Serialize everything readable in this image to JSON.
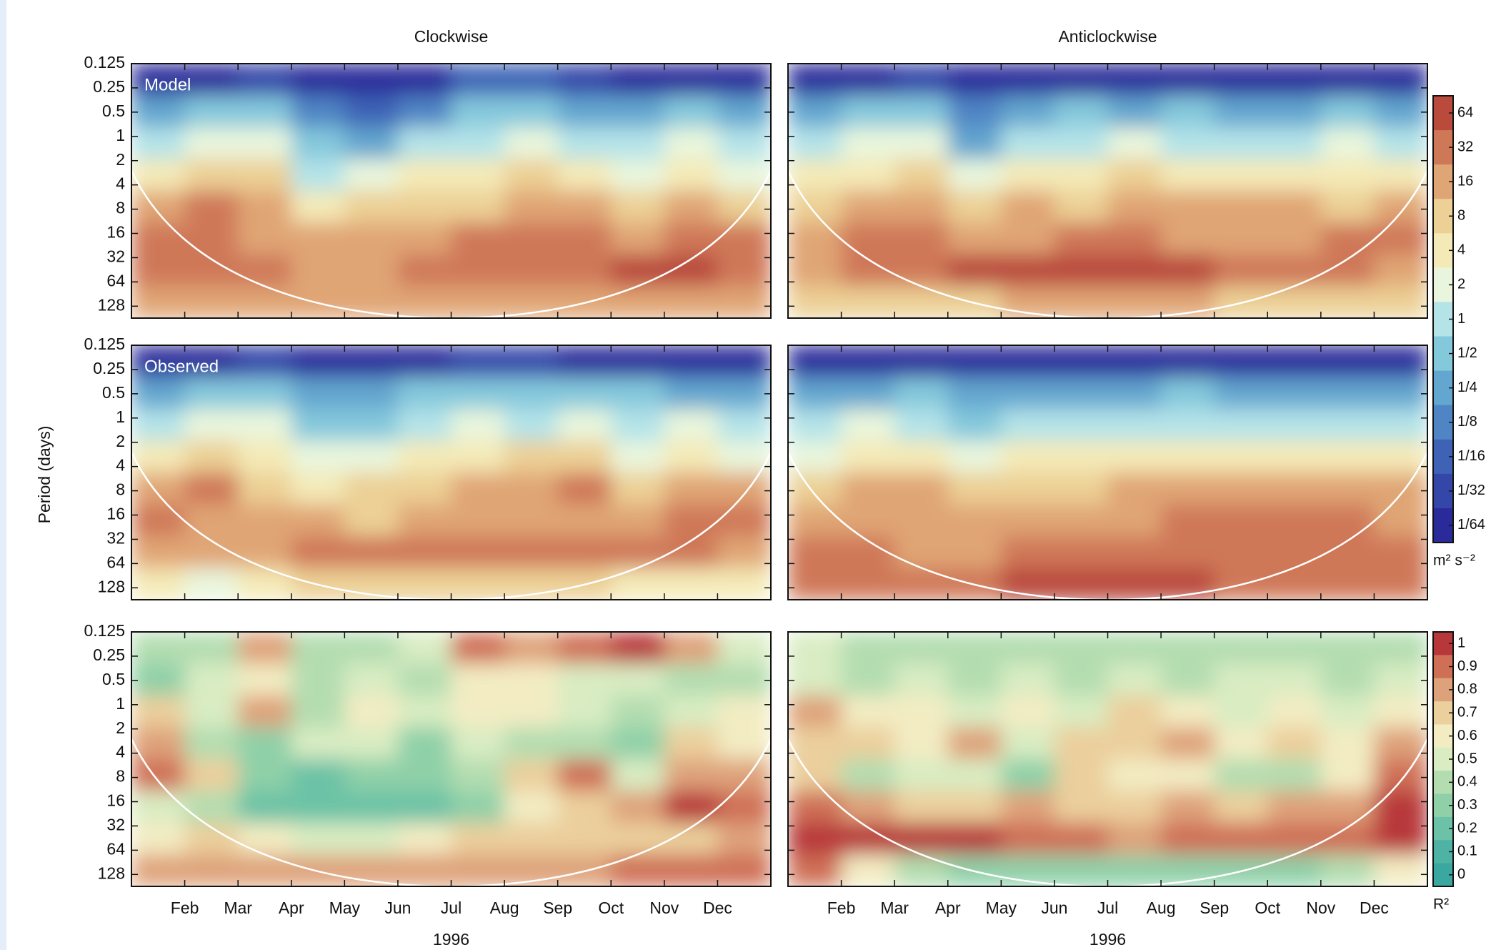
{
  "chart_data": {
    "type": "heatmap",
    "ylabel": "Period (days)",
    "xlabel": "1996",
    "xticks": [
      "Feb",
      "Mar",
      "Apr",
      "May",
      "Jun",
      "Jul",
      "Aug",
      "Sep",
      "Oct",
      "Nov",
      "Dec"
    ],
    "ylim": [
      0.125,
      180
    ],
    "ylog": true,
    "yticks": [
      0.125,
      0.25,
      0.5,
      1,
      2,
      4,
      8,
      16,
      32,
      64,
      128
    ],
    "colorbars": {
      "spectrum": {
        "unit": "m² s⁻²",
        "ticks": [
          {
            "value": 64,
            "label": "64"
          },
          {
            "value": 32,
            "label": "32"
          },
          {
            "value": 16,
            "label": "16"
          },
          {
            "value": 8,
            "label": "8"
          },
          {
            "value": 4,
            "label": "4"
          },
          {
            "value": 2,
            "label": "2"
          },
          {
            "value": 1,
            "label": "1"
          },
          {
            "value": 0.5,
            "label": "1/2"
          },
          {
            "value": 0.25,
            "label": "1/4"
          },
          {
            "value": 0.125,
            "label": "1/8"
          },
          {
            "value": 0.0625,
            "label": "1/16"
          },
          {
            "value": 0.03125,
            "label": "1/32"
          },
          {
            "value": 0.015625,
            "label": "1/64"
          }
        ],
        "colors": [
          "#b94a3c",
          "#cf7858",
          "#e0a574",
          "#ecd095",
          "#f4eab7",
          "#e9f6dd",
          "#b4e3e8",
          "#84c8dc",
          "#63a6cf",
          "#4f85c4",
          "#3e63b6",
          "#3447a8",
          "#2a2a9a"
        ],
        "log": true
      },
      "coherence": {
        "unit": "R²",
        "ticks": [
          1,
          0.9,
          0.8,
          0.7,
          0.6,
          0.5,
          0.4,
          0.3,
          0.2,
          0.1,
          0
        ],
        "colors": [
          "#b8373a",
          "#cf6f56",
          "#dea27a",
          "#ebcf9c",
          "#f3ecc3",
          "#d9ecc2",
          "#b3ddb0",
          "#8fd0a8",
          "#6cc2a6",
          "#4eb3a4",
          "#3aa7a0"
        ],
        "log": false
      }
    },
    "columns": [
      {
        "title": "Clockwise",
        "panels": [
          {
            "label": "Model",
            "scale": "spectrum",
            "z": [
              [
                0.02,
                0.02,
                0.03,
                0.02,
                0.02,
                0.02,
                0.05,
                0.05,
                0.03,
                0.02,
                0.02,
                0.02
              ],
              [
                0.3,
                0.5,
                0.4,
                0.1,
                0.05,
                0.1,
                0.4,
                0.5,
                0.3,
                0.2,
                0.4,
                0.2
              ],
              [
                1,
                2,
                2,
                0.5,
                0.3,
                0.8,
                1,
                2,
                1,
                0.8,
                2,
                1
              ],
              [
                4,
                8,
                8,
                1,
                2,
                4,
                4,
                8,
                4,
                2,
                4,
                2
              ],
              [
                16,
                32,
                16,
                4,
                8,
                8,
                8,
                16,
                16,
                8,
                16,
                8
              ],
              [
                32,
                32,
                16,
                16,
                16,
                16,
                32,
                32,
                32,
                16,
                32,
                32
              ],
              [
                32,
                32,
                32,
                16,
                16,
                32,
                32,
                32,
                32,
                64,
                64,
                32
              ],
              [
                16,
                16,
                16,
                16,
                16,
                16,
                16,
                16,
                16,
                16,
                16,
                16
              ]
            ]
          },
          {
            "label": "Observed",
            "scale": "spectrum",
            "z": [
              [
                0.02,
                0.02,
                0.03,
                0.02,
                0.02,
                0.02,
                0.03,
                0.03,
                0.02,
                0.02,
                0.02,
                0.02
              ],
              [
                0.3,
                0.5,
                0.5,
                0.2,
                0.2,
                0.4,
                0.5,
                0.5,
                0.5,
                0.4,
                0.3,
                0.2
              ],
              [
                1,
                2,
                2,
                0.5,
                0.5,
                1,
                2,
                1,
                2,
                1,
                2,
                1
              ],
              [
                4,
                8,
                4,
                2,
                2,
                4,
                4,
                8,
                8,
                2,
                4,
                2
              ],
              [
                16,
                32,
                8,
                4,
                8,
                8,
                16,
                16,
                32,
                8,
                16,
                16
              ],
              [
                32,
                16,
                16,
                16,
                8,
                16,
                16,
                16,
                16,
                16,
                32,
                32
              ],
              [
                16,
                16,
                16,
                32,
                32,
                32,
                32,
                32,
                32,
                32,
                32,
                16
              ],
              [
                4,
                2,
                4,
                8,
                8,
                8,
                8,
                8,
                8,
                4,
                4,
                4
              ]
            ]
          },
          {
            "scale": "coherence",
            "z": [
              [
                0.4,
                0.4,
                0.8,
                0.4,
                0.4,
                0.5,
                0.9,
                0.8,
                0.9,
                1,
                0.8,
                0.5
              ],
              [
                0.3,
                0.5,
                0.6,
                0.4,
                0.5,
                0.4,
                0.6,
                0.6,
                0.5,
                0.5,
                0.4,
                0.4
              ],
              [
                0.7,
                0.5,
                0.8,
                0.4,
                0.6,
                0.5,
                0.6,
                0.6,
                0.5,
                0.4,
                0.5,
                0.6
              ],
              [
                0.8,
                0.4,
                0.3,
                0.5,
                0.5,
                0.3,
                0.5,
                0.4,
                0.4,
                0.3,
                0.7,
                0.6
              ],
              [
                0.9,
                0.7,
                0.3,
                0.2,
                0.3,
                0.3,
                0.4,
                0.7,
                0.9,
                0.5,
                0.8,
                0.8
              ],
              [
                0.5,
                0.4,
                0.2,
                0.2,
                0.2,
                0.2,
                0.3,
                0.6,
                0.7,
                0.8,
                1,
                0.9
              ],
              [
                0.6,
                0.7,
                0.6,
                0.5,
                0.5,
                0.6,
                0.7,
                0.7,
                0.7,
                0.7,
                0.7,
                0.8
              ],
              [
                0.8,
                0.8,
                0.8,
                0.8,
                0.8,
                0.8,
                0.8,
                0.8,
                0.8,
                0.9,
                0.9,
                0.9
              ]
            ]
          }
        ]
      },
      {
        "title": "Anticlockwise",
        "panels": [
          {
            "scale": "spectrum",
            "z": [
              [
                0.02,
                0.02,
                0.03,
                0.02,
                0.02,
                0.02,
                0.02,
                0.02,
                0.02,
                0.02,
                0.02,
                0.02
              ],
              [
                0.3,
                0.4,
                0.5,
                0.1,
                0.2,
                0.4,
                0.3,
                0.4,
                0.3,
                0.3,
                0.4,
                0.3
              ],
              [
                1,
                2,
                2,
                0.3,
                1,
                1,
                2,
                1,
                1,
                1,
                2,
                1
              ],
              [
                4,
                4,
                8,
                2,
                4,
                4,
                8,
                4,
                4,
                4,
                4,
                4
              ],
              [
                8,
                16,
                16,
                8,
                16,
                8,
                16,
                16,
                16,
                16,
                8,
                16
              ],
              [
                16,
                32,
                32,
                16,
                16,
                32,
                32,
                16,
                16,
                16,
                32,
                32
              ],
              [
                16,
                32,
                32,
                64,
                64,
                64,
                64,
                64,
                32,
                32,
                32,
                16
              ],
              [
                8,
                8,
                8,
                8,
                16,
                16,
                16,
                16,
                8,
                8,
                8,
                8
              ]
            ]
          },
          {
            "scale": "spectrum",
            "z": [
              [
                0.02,
                0.02,
                0.02,
                0.02,
                0.02,
                0.02,
                0.02,
                0.02,
                0.02,
                0.02,
                0.02,
                0.02
              ],
              [
                0.3,
                0.3,
                0.5,
                0.2,
                0.3,
                0.3,
                0.3,
                0.4,
                0.3,
                0.3,
                0.3,
                0.3
              ],
              [
                1,
                2,
                1,
                0.5,
                1,
                1,
                1,
                1,
                1,
                1,
                1,
                1
              ],
              [
                2,
                4,
                4,
                2,
                4,
                4,
                4,
                4,
                4,
                4,
                4,
                4
              ],
              [
                8,
                16,
                16,
                8,
                8,
                8,
                16,
                16,
                16,
                16,
                16,
                16
              ],
              [
                16,
                16,
                16,
                16,
                16,
                16,
                16,
                32,
                32,
                32,
                32,
                16
              ],
              [
                32,
                32,
                16,
                16,
                32,
                32,
                32,
                32,
                32,
                32,
                32,
                32
              ],
              [
                32,
                32,
                32,
                32,
                64,
                64,
                64,
                64,
                32,
                32,
                32,
                32
              ]
            ]
          },
          {
            "scale": "coherence",
            "z": [
              [
                0.5,
                0.4,
                0.4,
                0.4,
                0.4,
                0.4,
                0.4,
                0.4,
                0.4,
                0.4,
                0.4,
                0.4
              ],
              [
                0.5,
                0.4,
                0.5,
                0.4,
                0.5,
                0.4,
                0.5,
                0.4,
                0.5,
                0.5,
                0.4,
                0.5
              ],
              [
                0.8,
                0.6,
                0.6,
                0.5,
                0.6,
                0.5,
                0.7,
                0.6,
                0.5,
                0.6,
                0.5,
                0.6
              ],
              [
                0.7,
                0.7,
                0.6,
                0.8,
                0.5,
                0.7,
                0.7,
                0.8,
                0.6,
                0.7,
                0.6,
                0.8
              ],
              [
                0.7,
                0.4,
                0.5,
                0.5,
                0.3,
                0.7,
                0.6,
                0.6,
                0.4,
                0.4,
                0.6,
                0.9
              ],
              [
                0.9,
                0.8,
                0.7,
                0.7,
                0.8,
                0.7,
                0.7,
                0.8,
                0.7,
                0.8,
                0.8,
                1
              ],
              [
                1,
                1,
                1,
                1,
                0.9,
                0.9,
                0.8,
                0.9,
                0.9,
                0.9,
                0.9,
                1
              ],
              [
                0.9,
                0.6,
                0.4,
                0.3,
                0.3,
                0.3,
                0.3,
                0.3,
                0.3,
                0.3,
                0.4,
                0.6
              ]
            ]
          }
        ]
      }
    ]
  }
}
